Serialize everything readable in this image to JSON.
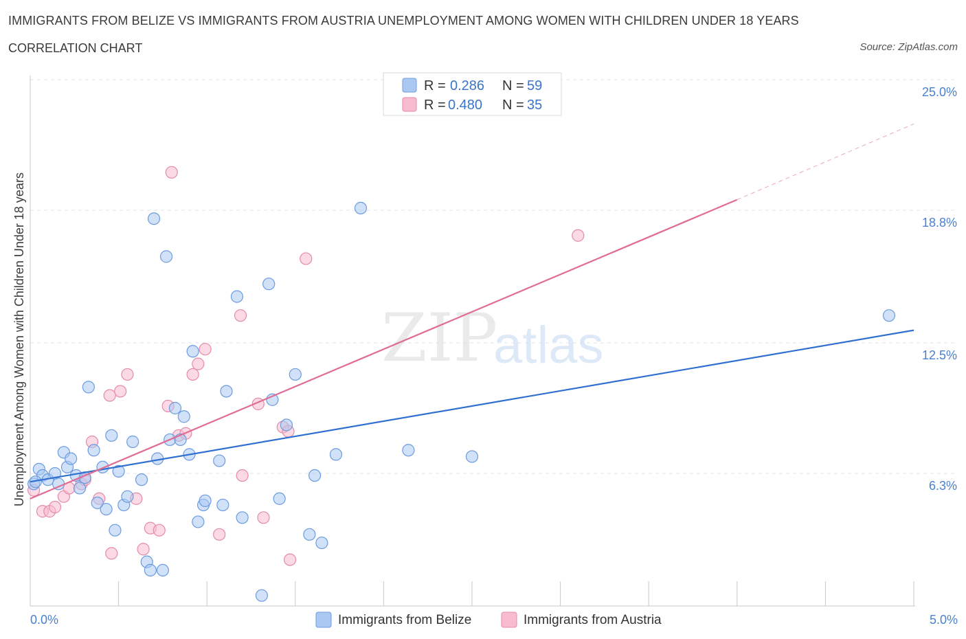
{
  "header": {
    "title": "IMMIGRANTS FROM BELIZE VS IMMIGRANTS FROM AUSTRIA UNEMPLOYMENT AMONG WOMEN WITH CHILDREN UNDER 18 YEARS",
    "subtitle": "CORRELATION CHART",
    "source": "Source: ZipAtlas.com"
  },
  "watermark": {
    "zip": "ZIP",
    "atlas": "atlas"
  },
  "legend": {
    "r_label": "R =",
    "n_label": "N =",
    "belize": {
      "r": "0.286",
      "n": "59",
      "fill": "#aac8f2",
      "stroke": "#6b9be0"
    },
    "austria": {
      "r": "0.480",
      "n": "35",
      "fill": "#f7bcd0",
      "stroke": "#e58aa8"
    }
  },
  "chart_data": {
    "type": "scatter",
    "title": "IMMIGRANTS FROM BELIZE VS IMMIGRANTS FROM AUSTRIA UNEMPLOYMENT AMONG WOMEN WITH CHILDREN UNDER 18 YEARS",
    "xlabel": "",
    "ylabel": "Unemployment Among Women with Children Under 18 years",
    "xlim": [
      0,
      5
    ],
    "ylim": [
      0,
      25
    ],
    "x_tick_labels": [
      "0.0%",
      "5.0%"
    ],
    "y_ticks": [
      6.3,
      12.5,
      18.8,
      25.0
    ],
    "y_tick_labels": [
      "6.3%",
      "12.5%",
      "18.8%",
      "25.0%"
    ],
    "grid": true,
    "legend_position": "top-center",
    "series": [
      {
        "name": "Immigrants from Belize",
        "color": "#6b9be0",
        "fill": "#aac8f2",
        "trend": {
          "x": [
            0.0,
            5.0
          ],
          "y": [
            5.9,
            13.1
          ],
          "color": "#2f6fd0"
        },
        "points": [
          [
            0.02,
            5.8
          ],
          [
            0.05,
            6.5
          ],
          [
            0.07,
            6.2
          ],
          [
            0.1,
            6.0
          ],
          [
            0.14,
            6.3
          ],
          [
            0.16,
            5.8
          ],
          [
            0.19,
            7.3
          ],
          [
            0.21,
            6.6
          ],
          [
            0.23,
            7.0
          ],
          [
            0.26,
            6.2
          ],
          [
            0.28,
            5.6
          ],
          [
            0.31,
            6.1
          ],
          [
            0.33,
            10.4
          ],
          [
            0.36,
            7.4
          ],
          [
            0.38,
            4.9
          ],
          [
            0.41,
            6.6
          ],
          [
            0.43,
            4.6
          ],
          [
            0.46,
            8.1
          ],
          [
            0.48,
            3.6
          ],
          [
            0.5,
            6.4
          ],
          [
            0.53,
            4.8
          ],
          [
            0.55,
            5.2
          ],
          [
            0.58,
            7.8
          ],
          [
            0.63,
            6.0
          ],
          [
            0.66,
            2.1
          ],
          [
            0.68,
            1.7
          ],
          [
            0.7,
            18.4
          ],
          [
            0.72,
            7.0
          ],
          [
            0.75,
            1.7
          ],
          [
            0.77,
            16.6
          ],
          [
            0.79,
            7.9
          ],
          [
            0.82,
            9.4
          ],
          [
            0.85,
            7.9
          ],
          [
            0.87,
            9.0
          ],
          [
            0.9,
            7.2
          ],
          [
            0.92,
            12.1
          ],
          [
            0.95,
            4.0
          ],
          [
            0.98,
            4.8
          ],
          [
            0.99,
            5.0
          ],
          [
            1.07,
            6.9
          ],
          [
            1.09,
            4.8
          ],
          [
            1.11,
            10.2
          ],
          [
            1.17,
            14.7
          ],
          [
            1.2,
            4.2
          ],
          [
            1.31,
            0.5
          ],
          [
            1.35,
            15.3
          ],
          [
            1.37,
            9.8
          ],
          [
            1.41,
            5.1
          ],
          [
            1.45,
            8.6
          ],
          [
            1.5,
            11.0
          ],
          [
            1.58,
            3.4
          ],
          [
            1.61,
            6.2
          ],
          [
            1.65,
            3.0
          ],
          [
            1.73,
            7.2
          ],
          [
            1.87,
            18.9
          ],
          [
            2.14,
            7.4
          ],
          [
            2.5,
            7.1
          ],
          [
            4.86,
            13.8
          ],
          [
            0.03,
            5.9
          ]
        ]
      },
      {
        "name": "Immigrants from Austria",
        "color": "#e58aa8",
        "fill": "#f7bcd0",
        "trend": {
          "x": [
            0.0,
            4.0
          ],
          "y": [
            5.1,
            19.3
          ],
          "color": "#e06b95"
        },
        "trend_ext": {
          "x": [
            4.0,
            5.0
          ],
          "y": [
            19.3,
            22.9
          ]
        },
        "points": [
          [
            0.02,
            5.5
          ],
          [
            0.07,
            4.5
          ],
          [
            0.11,
            4.5
          ],
          [
            0.14,
            4.7
          ],
          [
            0.19,
            5.2
          ],
          [
            0.22,
            5.6
          ],
          [
            0.29,
            5.8
          ],
          [
            0.31,
            6.0
          ],
          [
            0.35,
            7.8
          ],
          [
            0.39,
            5.1
          ],
          [
            0.45,
            10.0
          ],
          [
            0.46,
            2.5
          ],
          [
            0.51,
            10.2
          ],
          [
            0.55,
            11.0
          ],
          [
            0.6,
            5.1
          ],
          [
            0.64,
            2.7
          ],
          [
            0.68,
            3.7
          ],
          [
            0.73,
            3.6
          ],
          [
            0.78,
            9.5
          ],
          [
            0.8,
            20.6
          ],
          [
            0.84,
            8.1
          ],
          [
            0.88,
            8.2
          ],
          [
            0.92,
            11.0
          ],
          [
            0.95,
            11.5
          ],
          [
            0.99,
            12.2
          ],
          [
            1.07,
            3.4
          ],
          [
            1.19,
            13.8
          ],
          [
            1.2,
            6.2
          ],
          [
            1.29,
            9.6
          ],
          [
            1.32,
            4.2
          ],
          [
            1.43,
            8.5
          ],
          [
            1.46,
            8.3
          ],
          [
            1.47,
            2.2
          ],
          [
            1.56,
            16.5
          ],
          [
            3.1,
            17.6
          ]
        ]
      }
    ]
  }
}
